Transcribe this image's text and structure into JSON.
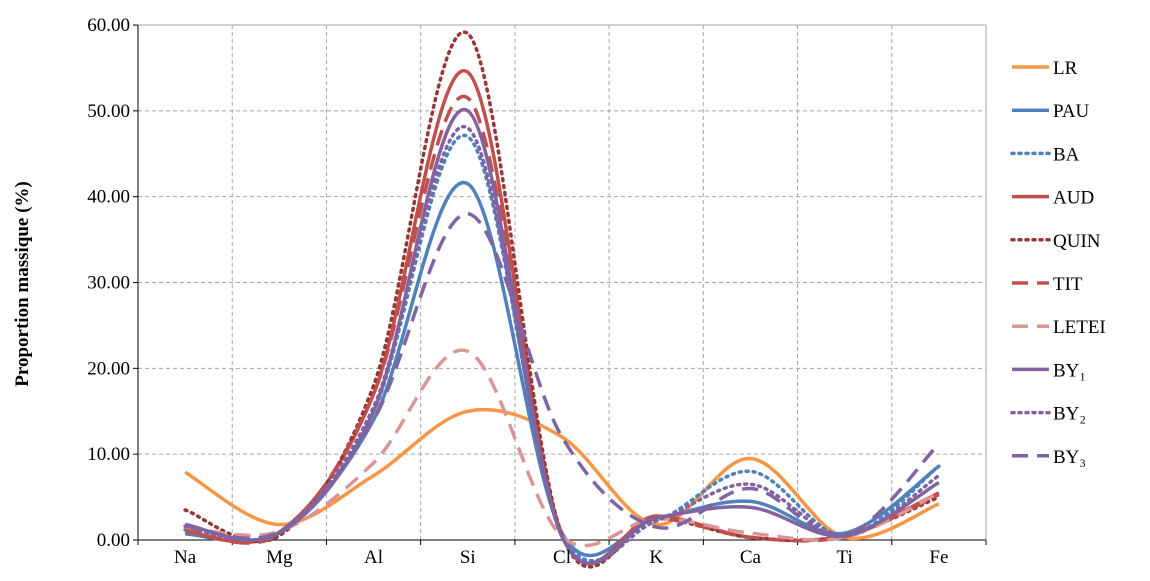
{
  "chart_data": {
    "type": "line",
    "title": "",
    "xlabel": "",
    "ylabel": "Proportion massique (%)",
    "categories": [
      "Na",
      "Mg",
      "Al",
      "Si",
      "Cl",
      "K",
      "Ca",
      "Ti",
      "Fe"
    ],
    "ylim": [
      0,
      60
    ],
    "yticks": [
      "0.00",
      "10.00",
      "20.00",
      "30.00",
      "40.00",
      "50.00",
      "60.00"
    ],
    "grid": "dashed, both axes",
    "legend_position": "right",
    "smooth": true,
    "series": [
      {
        "name": "LR",
        "color": "#F79646",
        "style": "solid",
        "values": [
          7.9,
          1.8,
          7.5,
          15.0,
          12.0,
          1.8,
          9.5,
          0.3,
          4.2
        ]
      },
      {
        "name": "PAU",
        "color": "#4F81BD",
        "style": "solid",
        "values": [
          0.7,
          0.9,
          14.0,
          41.5,
          0.8,
          2.5,
          4.5,
          0.8,
          8.6
        ]
      },
      {
        "name": "BA",
        "color": "#4F81BD",
        "style": "dotted",
        "values": [
          1.2,
          0.9,
          15.0,
          47.0,
          0.8,
          2.2,
          8.0,
          0.5,
          8.6
        ]
      },
      {
        "name": "AUD",
        "color": "#C0504D",
        "style": "solid",
        "values": [
          1.0,
          0.9,
          17.0,
          54.5,
          0.6,
          2.8,
          0.3,
          0.5,
          5.5
        ]
      },
      {
        "name": "QUIN",
        "color": "#953735",
        "style": "dotted",
        "values": [
          3.5,
          0.5,
          18.0,
          59.0,
          0.6,
          2.5,
          0.3,
          0.5,
          5.0
        ]
      },
      {
        "name": "TIT",
        "color": "#C0504D",
        "style": "dashed",
        "values": [
          1.2,
          0.7,
          17.0,
          51.5,
          0.4,
          2.5,
          0.3,
          0.4,
          5.3
        ]
      },
      {
        "name": "LETEI",
        "color": "#D99694",
        "style": "dashed",
        "values": [
          1.5,
          1.0,
          9.0,
          22.0,
          0.4,
          2.5,
          0.8,
          0.3,
          5.5
        ]
      },
      {
        "name": "BY₁",
        "color": "#8064A2",
        "style": "solid",
        "values": [
          1.8,
          0.8,
          15.0,
          50.0,
          0.4,
          2.6,
          3.8,
          0.5,
          6.7
        ]
      },
      {
        "name": "BY₂",
        "color": "#8064A2",
        "style": "dotted",
        "values": [
          1.6,
          0.9,
          15.5,
          48.0,
          0.4,
          2.3,
          6.5,
          0.5,
          7.5
        ]
      },
      {
        "name": "BY₃",
        "color": "#8064A2",
        "style": "dashed",
        "values": [
          1.6,
          1.0,
          14.0,
          38.0,
          12.0,
          1.5,
          6.0,
          0.5,
          11.2
        ]
      }
    ]
  }
}
